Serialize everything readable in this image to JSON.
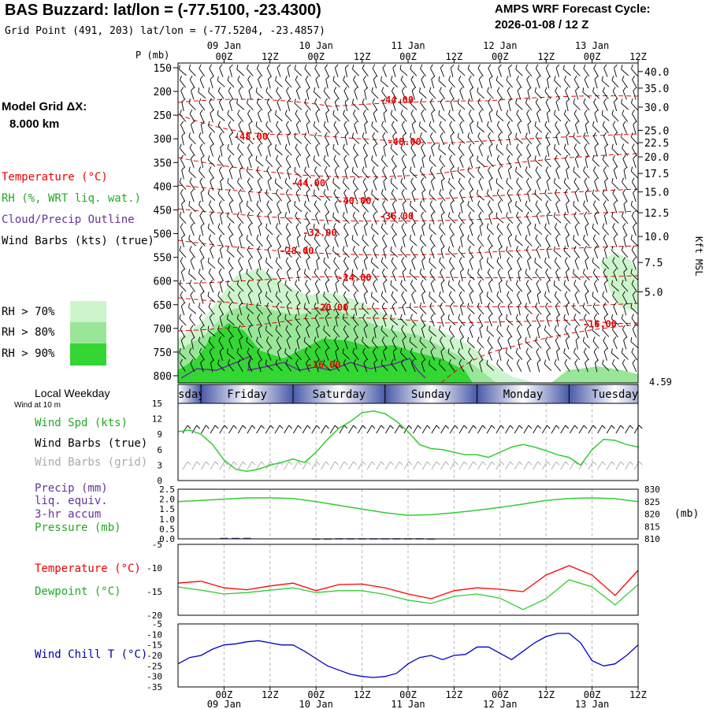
{
  "header": {
    "title": "BAS Buzzard:  lat/lon = (-77.5100, -23.4300)",
    "grid_point": "Grid Point (491, 203) lat/lon = (-77.5204, -23.4857)",
    "cycle_label": "AMPS WRF Forecast Cycle:",
    "cycle_value": "2026-01-08 / 12  Z"
  },
  "sidebar": {
    "model_grid": "Model Grid ΔX:",
    "model_grid_value": "8.000 km",
    "temperature": "Temperature (°C)",
    "rh": "RH (%, WRT liq. wat.)",
    "cloud": "Cloud/Precip Outline",
    "wind_barbs": "Wind Barbs (kts) (true)",
    "rh_legend": [
      {
        "label": "RH > 70%",
        "color": "#ccf5cc"
      },
      {
        "label": "RH > 80%",
        "color": "#99e699"
      },
      {
        "label": "RH > 90%",
        "color": "#33d633"
      }
    ],
    "local_weekday": "Local Weekday",
    "wind_at": "Wind at 10 m",
    "wind_spd": "Wind Spd (kts)",
    "wind_barbs_true": "Wind Barbs (true)",
    "wind_barbs_grid": "Wind Barbs (grid)",
    "precip1": "Precip (mm)",
    "precip2": "liq. equiv.",
    "precip3": "3-hr accum",
    "pressure": "Pressure (mb)",
    "temp2": "Temperature (°C)",
    "dewpoint": "Dewpoint (°C)",
    "wind_chill": "Wind Chill T (°C)"
  },
  "time_axis": {
    "ticks": [
      "00Z",
      "12Z",
      "00Z",
      "12Z",
      "00Z",
      "12Z",
      "00Z",
      "12Z",
      "00Z",
      "12Z"
    ],
    "tick_hours": [
      12,
      24,
      36,
      48,
      60,
      72,
      84,
      96,
      108,
      120
    ],
    "dates": [
      "09 Jan",
      "10 Jan",
      "11 Jan",
      "12 Jan",
      "13 Jan"
    ],
    "date_hours": [
      12,
      36,
      60,
      84,
      108
    ],
    "hours_span": [
      0,
      120
    ]
  },
  "weekdays": [
    {
      "label": "Thursday",
      "start": -6,
      "end": 6
    },
    {
      "label": "Friday",
      "start": 6,
      "end": 30
    },
    {
      "label": "Saturday",
      "start": 30,
      "end": 54
    },
    {
      "label": "Sunday",
      "start": 54,
      "end": 78
    },
    {
      "label": "Monday",
      "start": 78,
      "end": 102
    },
    {
      "label": "Tuesday",
      "start": 102,
      "end": 126
    }
  ],
  "chart_data": [
    {
      "type": "heatmap",
      "title": "Time-height cross section",
      "p_axis_label": "P (mb)",
      "p_ticks": [
        150,
        200,
        250,
        300,
        350,
        400,
        450,
        500,
        550,
        600,
        650,
        700,
        750,
        800
      ],
      "p_range": [
        140,
        815
      ],
      "height_axis_label": "Kft MSL",
      "height_ticks": [
        {
          "p": 158,
          "label": "40.0"
        },
        {
          "p": 193,
          "label": "35.0"
        },
        {
          "p": 233,
          "label": "30.0"
        },
        {
          "p": 282,
          "label": "25.0"
        },
        {
          "p": 308,
          "label": "22.5"
        },
        {
          "p": 338,
          "label": "20.0"
        },
        {
          "p": 373,
          "label": "17.5"
        },
        {
          "p": 412,
          "label": "15.0"
        },
        {
          "p": 456,
          "label": "12.5"
        },
        {
          "p": 506,
          "label": "10.0"
        },
        {
          "p": 561,
          "label": "7.5"
        },
        {
          "p": 623,
          "label": "5.0"
        }
      ],
      "surface_label": "4.59",
      "temp_labels": [
        {
          "hour": 57,
          "p": 225,
          "label": "-44.00"
        },
        {
          "hour": 19,
          "p": 302,
          "label": "-48.00"
        },
        {
          "hour": 59,
          "p": 313,
          "label": "-48.00"
        },
        {
          "hour": 34,
          "p": 400,
          "label": "-44.00"
        },
        {
          "hour": 46,
          "p": 438,
          "label": "-40.00"
        },
        {
          "hour": 57,
          "p": 470,
          "label": "-36.00"
        },
        {
          "hour": 37,
          "p": 505,
          "label": "-32.00"
        },
        {
          "hour": 31,
          "p": 543,
          "label": "-28.00"
        },
        {
          "hour": 46,
          "p": 600,
          "label": "-24.00"
        },
        {
          "hour": 40,
          "p": 663,
          "label": "-20.00"
        },
        {
          "hour": 110,
          "p": 698,
          "label": "-16.00"
        },
        {
          "hour": 38,
          "p": 783,
          "label": "-16.00"
        }
      ]
    },
    {
      "type": "line",
      "title": "",
      "ylim": [
        0,
        15
      ],
      "y_ticks": [
        0,
        3,
        6,
        9,
        12,
        15
      ],
      "series": [
        {
          "name": "Wind Spd (kts)",
          "color": "#33cc33",
          "x": [
            0,
            3,
            6,
            9,
            12,
            15,
            18,
            21,
            24,
            27,
            30,
            33,
            36,
            39,
            42,
            45,
            48,
            51,
            54,
            57,
            60,
            63,
            66,
            69,
            72,
            75,
            78,
            81,
            84,
            87,
            90,
            93,
            96,
            99,
            102,
            105,
            108,
            111,
            114,
            117,
            120
          ],
          "values": [
            9.5,
            9.8,
            9,
            7,
            4,
            2.2,
            1.8,
            2.2,
            3,
            3.5,
            4.2,
            3.5,
            5.5,
            8,
            10.2,
            11.5,
            13.2,
            13.5,
            13,
            11.5,
            9.5,
            7,
            6.2,
            6,
            5.5,
            5,
            5,
            4.5,
            5.5,
            6.5,
            7,
            6.5,
            5.8,
            5,
            4.5,
            3,
            6,
            8,
            7.8,
            7,
            6.5
          ]
        }
      ]
    },
    {
      "type": "line",
      "title": "",
      "ylim_precip": [
        0,
        2.5
      ],
      "precip_ticks": [
        "0.0",
        "0.5",
        "1.0",
        "1.5",
        "2.0",
        "2.5"
      ],
      "ylim_pressure": [
        810,
        830
      ],
      "pressure_ticks": [
        810,
        815,
        820,
        825,
        830
      ],
      "series": [
        {
          "name": "Pressure (mb)",
          "color": "#33cc33",
          "x": [
            0,
            6,
            12,
            18,
            24,
            30,
            36,
            42,
            48,
            54,
            60,
            66,
            72,
            78,
            84,
            90,
            96,
            102,
            108,
            114,
            120
          ],
          "values": [
            825,
            825.5,
            826,
            826.5,
            826.5,
            826.3,
            825,
            823.5,
            822,
            820.5,
            819.5,
            819.7,
            820.5,
            821.5,
            822.7,
            824,
            825.5,
            826.3,
            826.5,
            826.2,
            825
          ]
        },
        {
          "name": "Precip (mm)",
          "color": "#663399",
          "x": [
            12,
            15,
            18,
            36,
            39,
            42,
            45,
            48,
            51,
            54,
            57,
            60,
            63,
            66
          ],
          "values": [
            0.05,
            0.05,
            0.05,
            0.02,
            0.02,
            0.03,
            0.03,
            0.03,
            0.03,
            0.03,
            0.03,
            0.03,
            0.03,
            0.02
          ]
        }
      ]
    },
    {
      "type": "line",
      "title": "",
      "ylim": [
        -20,
        -5
      ],
      "y_ticks": [
        -5,
        -10,
        -15,
        -20
      ],
      "series": [
        {
          "name": "Temperature (°C)",
          "color": "#ff0000",
          "x": [
            0,
            6,
            12,
            18,
            24,
            30,
            36,
            42,
            48,
            54,
            60,
            66,
            72,
            78,
            84,
            90,
            96,
            102,
            108,
            114,
            120
          ],
          "values": [
            -13.2,
            -12.8,
            -14.2,
            -14.6,
            -13.8,
            -13.2,
            -14.8,
            -13.5,
            -13.4,
            -14.2,
            -15.5,
            -16.5,
            -14.8,
            -14.2,
            -14.5,
            -15,
            -11.5,
            -9.5,
            -11.5,
            -15.8,
            -10.5
          ]
        },
        {
          "name": "Dewpoint (°C)",
          "color": "#33cc33",
          "x": [
            0,
            6,
            12,
            18,
            24,
            30,
            36,
            42,
            48,
            54,
            60,
            66,
            72,
            78,
            84,
            90,
            96,
            102,
            108,
            114,
            120
          ],
          "values": [
            -14,
            -14.7,
            -15.5,
            -15.2,
            -14.7,
            -14.2,
            -15.2,
            -14.8,
            -14.8,
            -15.6,
            -16.8,
            -17.5,
            -16,
            -15.5,
            -16.4,
            -18.8,
            -16.5,
            -12.5,
            -14,
            -17.8,
            -13.5
          ]
        }
      ]
    },
    {
      "type": "line",
      "title": "",
      "ylim": [
        -35,
        -5
      ],
      "y_ticks": [
        -5,
        -10,
        -15,
        -20,
        -25,
        -30,
        -35
      ],
      "series": [
        {
          "name": "Wind Chill T (°C)",
          "color": "#0000cc",
          "x": [
            0,
            3,
            6,
            9,
            12,
            15,
            18,
            21,
            24,
            27,
            30,
            33,
            36,
            39,
            42,
            45,
            48,
            51,
            54,
            57,
            60,
            63,
            66,
            69,
            72,
            75,
            78,
            81,
            84,
            87,
            90,
            93,
            96,
            99,
            102,
            105,
            108,
            111,
            114,
            117,
            120
          ],
          "values": [
            -24,
            -21,
            -20,
            -17,
            -15,
            -14.5,
            -13.5,
            -13,
            -14,
            -15,
            -15,
            -18,
            -21.5,
            -25,
            -27,
            -29,
            -30,
            -30.5,
            -30,
            -28.5,
            -24,
            -21,
            -20,
            -22,
            -20,
            -19.5,
            -16,
            -16,
            -19,
            -22,
            -18,
            -14,
            -11,
            -9.5,
            -9.5,
            -14,
            -22.5,
            -25,
            -24,
            -20,
            -15
          ]
        }
      ]
    }
  ]
}
